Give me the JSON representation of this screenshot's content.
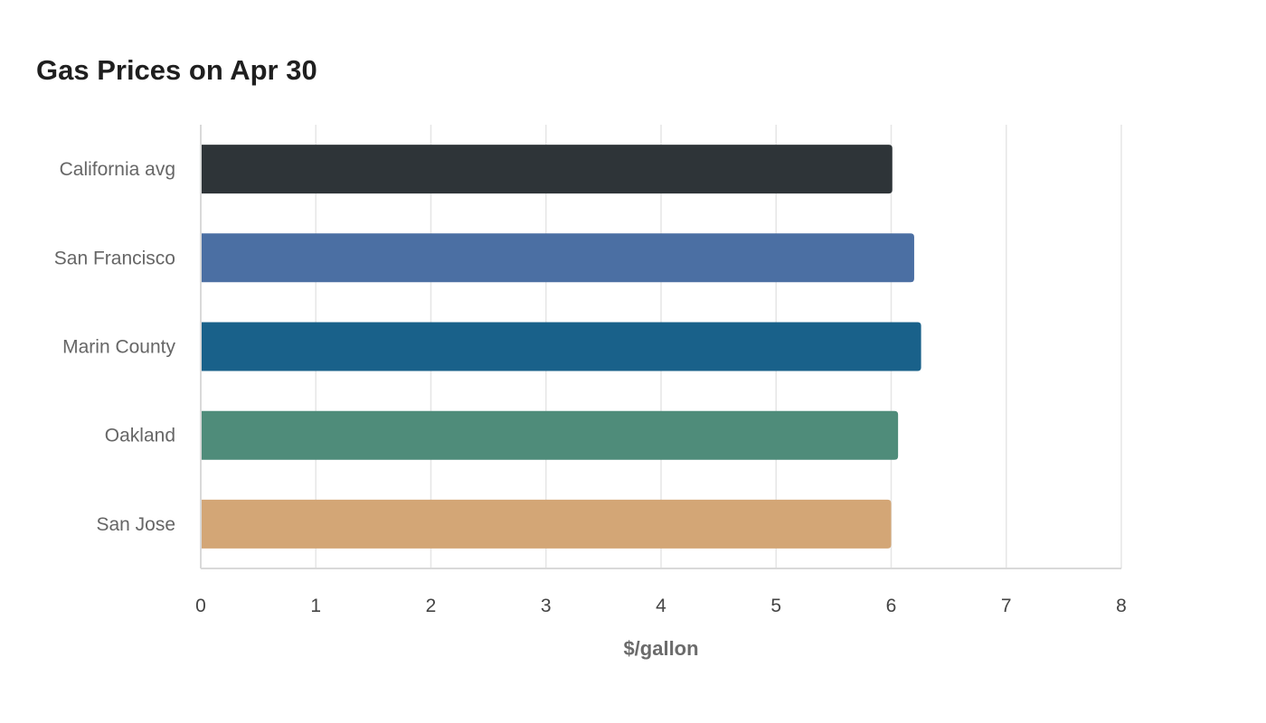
{
  "chart_data": {
    "type": "bar",
    "orientation": "horizontal",
    "title": "Gas Prices on Apr 30",
    "xlabel": "$/gallon",
    "ylabel": "",
    "categories": [
      "California avg",
      "San Francisco",
      "Marin County",
      "Oakland",
      "San Jose"
    ],
    "values": [
      6.01,
      6.2,
      6.26,
      6.06,
      6.0
    ],
    "colors": [
      "#2e3438",
      "#4b6fa3",
      "#19618a",
      "#4f8c7a",
      "#d3a676"
    ],
    "xlim": [
      0,
      8
    ],
    "ticks": [
      "0",
      "1",
      "2",
      "3",
      "4",
      "5",
      "6",
      "7",
      "8"
    ],
    "grid": true,
    "legend": "none"
  }
}
